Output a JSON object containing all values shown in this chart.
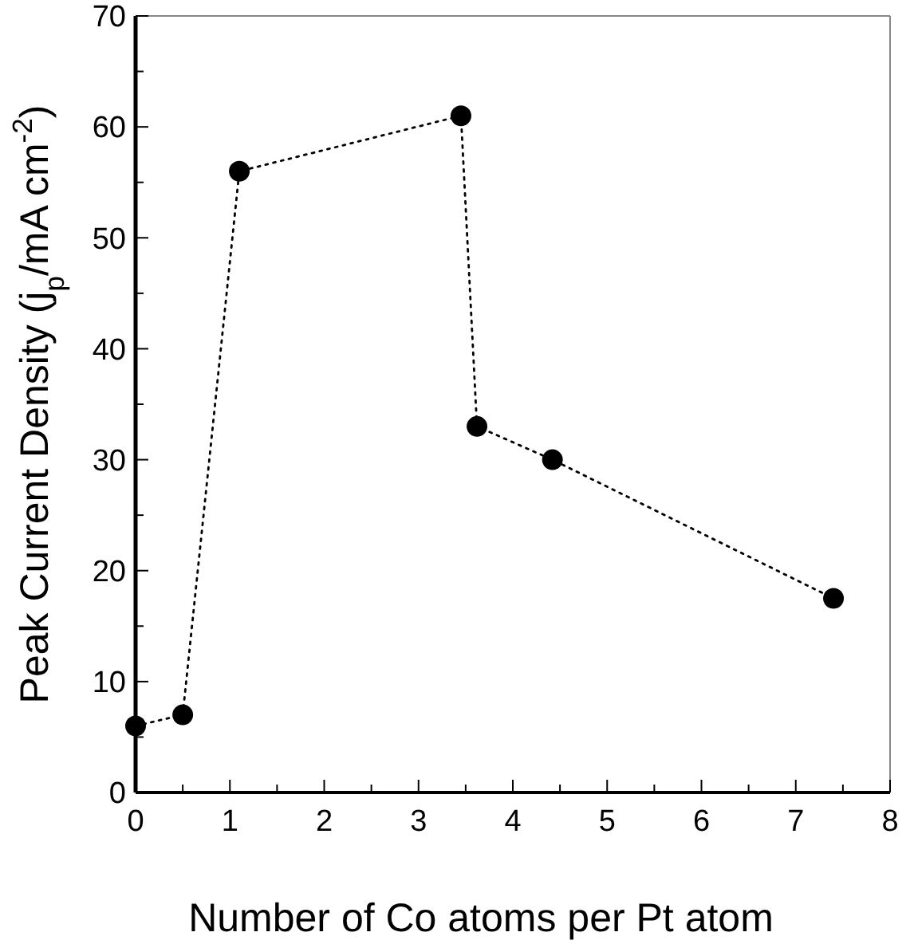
{
  "chart_data": {
    "type": "line",
    "xlabel": "Number of Co atoms per Pt atom",
    "ylabel": "Peak Current Density (j$_{p}$/mA cm$^{-2}$)",
    "x": [
      0,
      0.5,
      1.1,
      3.45,
      3.62,
      4.42,
      7.4
    ],
    "series": [
      {
        "color": "#000000",
        "values": [
          6,
          7,
          56,
          61,
          33,
          30,
          17.5
        ]
      }
    ],
    "xlim": [
      0,
      8
    ],
    "ylim": [
      0,
      70
    ],
    "xticks": [
      0,
      {
        "value": 0.5,
        "label": null
      },
      1,
      {
        "value": 1.5,
        "label": null
      },
      2,
      {
        "value": 2.5,
        "label": null
      },
      3,
      {
        "value": 3.5,
        "label": null
      },
      4,
      {
        "value": 4.5,
        "label": null
      },
      5,
      {
        "value": 5.5,
        "label": null
      },
      6,
      {
        "value": 6.5,
        "label": null
      },
      7,
      {
        "value": 7.5,
        "label": null
      },
      8
    ],
    "yticks": [
      0,
      {
        "value": 5,
        "label": null
      },
      10,
      {
        "value": 15,
        "label": null
      },
      20,
      {
        "value": 25,
        "label": null
      },
      30,
      {
        "value": 35,
        "label": null
      },
      40,
      {
        "value": 45,
        "label": null
      },
      50,
      {
        "value": 55,
        "label": null
      },
      60,
      {
        "value": 65,
        "label": null
      },
      70
    ],
    "marker": "circle",
    "line_style": "dotted",
    "grid": false
  }
}
